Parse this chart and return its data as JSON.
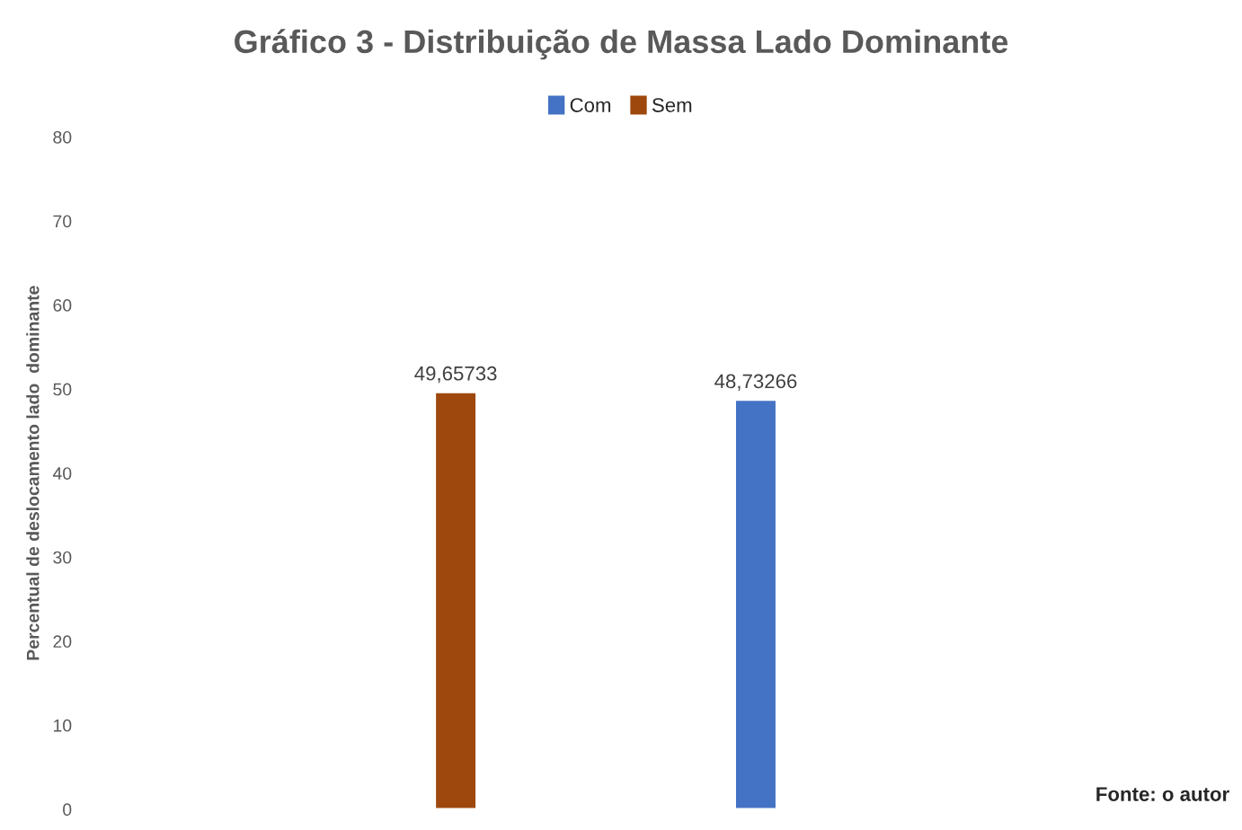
{
  "chart_data": {
    "type": "bar",
    "title": "Gráfico 3 - Distribuição de Massa Lado Dominante",
    "ylabel": "Percentual de deslocamento lado  dominante",
    "categories": [
      null,
      null
    ],
    "series": [
      {
        "name": "Com",
        "color": "#4472c4",
        "values": [
          null,
          48.73266
        ],
        "value_labels": [
          null,
          "48,73266"
        ]
      },
      {
        "name": "Sem",
        "color": "#9e480e",
        "values": [
          49.65733,
          null
        ],
        "value_labels": [
          "49,65733",
          null
        ]
      }
    ],
    "stacked": true,
    "ylim": [
      0,
      80
    ],
    "yticks": [
      0,
      10,
      20,
      30,
      40,
      50,
      60,
      70,
      80
    ],
    "grid": false,
    "legend": "top",
    "annotations": [
      "Fonte: o autor"
    ]
  }
}
